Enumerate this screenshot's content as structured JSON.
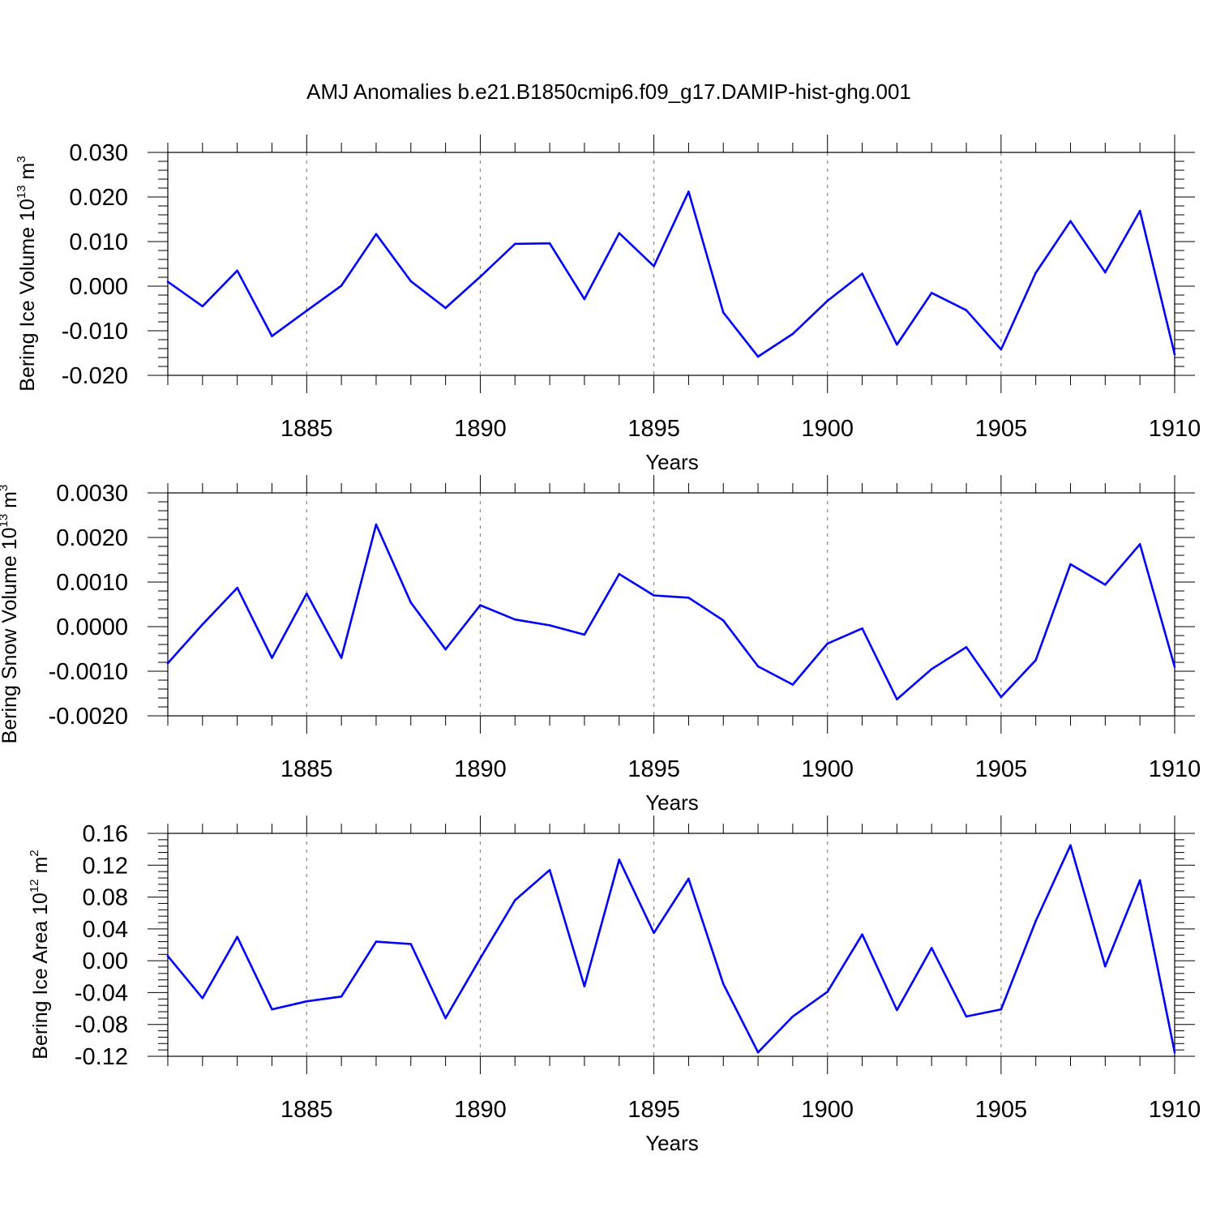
{
  "title": "AMJ Anomalies b.e21.B1850cmip6.f09_g17.DAMIP-hist-ghg.001",
  "colors": {
    "line": "#0000ff",
    "grid": "#888888",
    "axis": "#000000"
  },
  "chart_data": [
    {
      "type": "line",
      "ylabel": "Bering Ice Volume 10",
      "ylabel_exp": "13",
      "ylabel_unit": "m",
      "ylabel_unit_exp": "3",
      "xlabel": "Years",
      "xlim": [
        1881,
        1910
      ],
      "ylim": [
        -0.02,
        0.03
      ],
      "yticks": [
        0.03,
        0.02,
        0.01,
        0.0,
        -0.01,
        -0.02
      ],
      "ytick_labels": [
        "0.030",
        "0.020",
        "0.010",
        "0.000",
        "-0.010",
        "-0.020"
      ],
      "xticks": [
        1885,
        1890,
        1895,
        1900,
        1905,
        1910
      ],
      "xtick_labels": [
        "1885",
        "1890",
        "1895",
        "1900",
        "1905",
        "1910"
      ],
      "grid": "x-dashed",
      "x": [
        1881,
        1882,
        1883,
        1884,
        1885,
        1886,
        1887,
        1888,
        1889,
        1890,
        1891,
        1892,
        1893,
        1894,
        1895,
        1896,
        1897,
        1898,
        1899,
        1900,
        1901,
        1902,
        1903,
        1904,
        1905,
        1906,
        1907,
        1908,
        1909,
        1910
      ],
      "y": [
        0.001,
        -0.0045,
        0.0035,
        -0.0112,
        -0.0055,
        0.0001,
        0.0117,
        0.0011,
        -0.0049,
        0.0021,
        0.0095,
        0.0096,
        -0.0029,
        0.0119,
        0.0045,
        0.0212,
        -0.0059,
        -0.0158,
        -0.0107,
        -0.0033,
        0.0028,
        -0.0131,
        -0.0015,
        -0.0054,
        -0.0142,
        0.003,
        0.0146,
        0.0031,
        0.0169,
        -0.0153
      ]
    },
    {
      "type": "line",
      "ylabel": "Bering Snow Volume 10",
      "ylabel_exp": "13",
      "ylabel_unit": "m",
      "ylabel_unit_exp": "3",
      "xlabel": "Years",
      "xlim": [
        1881,
        1910
      ],
      "ylim": [
        -0.002,
        0.003
      ],
      "yticks": [
        0.003,
        0.002,
        0.001,
        0.0,
        -0.001,
        -0.002
      ],
      "ytick_labels": [
        "0.0030",
        "0.0020",
        "0.0010",
        "0.0000",
        "-0.0010",
        "-0.0020"
      ],
      "xticks": [
        1885,
        1890,
        1895,
        1900,
        1905,
        1910
      ],
      "xtick_labels": [
        "1885",
        "1890",
        "1895",
        "1900",
        "1905",
        "1910"
      ],
      "grid": "x-dashed",
      "x": [
        1881,
        1882,
        1883,
        1884,
        1885,
        1886,
        1887,
        1888,
        1889,
        1890,
        1891,
        1892,
        1893,
        1894,
        1895,
        1896,
        1897,
        1898,
        1899,
        1900,
        1901,
        1902,
        1903,
        1904,
        1905,
        1906,
        1907,
        1908,
        1909,
        1910
      ],
      "y": [
        -0.00082,
        5e-05,
        0.00087,
        -0.0007,
        0.00074,
        -0.0007,
        0.00229,
        0.00054,
        -0.00051,
        0.00048,
        0.00016,
        3e-05,
        -0.00018,
        0.00118,
        0.0007,
        0.00065,
        0.00014,
        -0.00089,
        -0.0013,
        -0.00038,
        -4e-05,
        -0.00163,
        -0.00095,
        -0.00046,
        -0.00158,
        -0.00075,
        0.0014,
        0.00094,
        0.00185,
        -0.0009
      ]
    },
    {
      "type": "line",
      "ylabel": "Bering Ice Area 10",
      "ylabel_exp": "12",
      "ylabel_unit": "m",
      "ylabel_unit_exp": "2",
      "xlabel": "Years",
      "xlim": [
        1881,
        1910
      ],
      "ylim": [
        -0.12,
        0.16
      ],
      "yticks": [
        0.16,
        0.12,
        0.08,
        0.04,
        0.0,
        -0.04,
        -0.08,
        -0.12
      ],
      "ytick_labels": [
        "0.16",
        "0.12",
        "0.08",
        "0.04",
        "0.00",
        "-0.04",
        "-0.08",
        "-0.12"
      ],
      "xticks": [
        1885,
        1890,
        1895,
        1900,
        1905,
        1910
      ],
      "xtick_labels": [
        "1885",
        "1890",
        "1895",
        "1900",
        "1905",
        "1910"
      ],
      "grid": "x-dashed",
      "x": [
        1881,
        1882,
        1883,
        1884,
        1885,
        1886,
        1887,
        1888,
        1889,
        1890,
        1891,
        1892,
        1893,
        1894,
        1895,
        1896,
        1897,
        1898,
        1899,
        1900,
        1901,
        1902,
        1903,
        1904,
        1905,
        1906,
        1907,
        1908,
        1909,
        1910
      ],
      "y": [
        0.006,
        -0.047,
        0.03,
        -0.061,
        -0.051,
        -0.045,
        0.024,
        0.021,
        -0.072,
        0.003,
        0.076,
        0.114,
        -0.032,
        0.127,
        0.035,
        0.103,
        -0.029,
        -0.115,
        -0.07,
        -0.039,
        0.033,
        -0.062,
        0.016,
        -0.07,
        -0.061,
        0.05,
        0.145,
        -0.007,
        0.101,
        -0.115
      ]
    }
  ]
}
